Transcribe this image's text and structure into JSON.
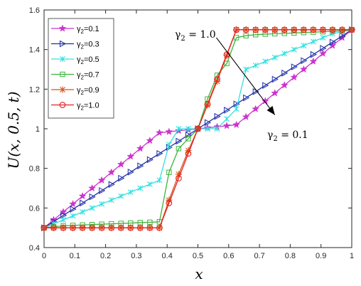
{
  "chart_data": {
    "type": "line",
    "title": "",
    "xlabel": "x",
    "ylabel": "U(x, 0.5, t)",
    "xlim": [
      0,
      1
    ],
    "ylim": [
      0.4,
      1.6
    ],
    "xticks": [
      0,
      0.1,
      0.2,
      0.3,
      0.4,
      0.5,
      0.6,
      0.7,
      0.8,
      0.9,
      1
    ],
    "yticks": [
      0.4,
      0.6,
      0.8,
      1,
      1.2,
      1.4,
      1.6
    ],
    "xtick_labels": [
      "0",
      "0.1",
      "0.2",
      "0.3",
      "0.4",
      "0.5",
      "0.6",
      "0.7",
      "0.8",
      "0.9",
      "1"
    ],
    "ytick_labels": [
      "0.4",
      "0.6",
      "0.8",
      "1",
      "1.2",
      "1.4",
      "1.6"
    ],
    "grid": false,
    "legend_position": "top-left",
    "x": [
      0,
      0.0312,
      0.0625,
      0.0938,
      0.125,
      0.1562,
      0.1875,
      0.2188,
      0.25,
      0.2812,
      0.3125,
      0.3438,
      0.375,
      0.4062,
      0.4375,
      0.4688,
      0.5,
      0.5312,
      0.5625,
      0.5938,
      0.625,
      0.6562,
      0.6875,
      0.7188,
      0.75,
      0.7812,
      0.8125,
      0.8438,
      0.875,
      0.9062,
      0.9375,
      0.9688,
      1
    ],
    "series": [
      {
        "name": "γ2=0.1",
        "label_main": "γ",
        "label_sub": "2",
        "label_rest": "=0.1",
        "color": "#cc33cc",
        "marker": "star",
        "values": [
          0.5,
          0.54,
          0.58,
          0.62,
          0.66,
          0.7,
          0.74,
          0.78,
          0.82,
          0.86,
          0.9,
          0.94,
          0.98,
          0.985,
          0.99,
          0.995,
          1,
          1.005,
          1.01,
          1.015,
          1.02,
          1.06,
          1.1,
          1.14,
          1.18,
          1.22,
          1.26,
          1.3,
          1.34,
          1.38,
          1.42,
          1.46,
          1.5
        ]
      },
      {
        "name": "γ2=0.3",
        "label_main": "γ",
        "label_sub": "2",
        "label_rest": "=0.3",
        "color": "#1f2fa8",
        "marker": "triangle-right",
        "values": [
          0.5,
          0.5312,
          0.5625,
          0.5938,
          0.625,
          0.6562,
          0.6875,
          0.7188,
          0.75,
          0.7812,
          0.8125,
          0.8438,
          0.875,
          0.9062,
          0.9375,
          0.9688,
          1,
          1.0312,
          1.0625,
          1.0938,
          1.125,
          1.1562,
          1.1875,
          1.2188,
          1.25,
          1.2812,
          1.3125,
          1.3438,
          1.375,
          1.4062,
          1.4375,
          1.4688,
          1.5
        ]
      },
      {
        "name": "γ2=0.5",
        "label_main": "γ",
        "label_sub": "2",
        "label_rest": "=0.5",
        "color": "#33e0e0",
        "marker": "x-star",
        "values": [
          0.5,
          0.52,
          0.54,
          0.56,
          0.58,
          0.6,
          0.62,
          0.64,
          0.66,
          0.68,
          0.7,
          0.72,
          0.74,
          0.92,
          1.0,
          1.0,
          1.0,
          1.0,
          1.0,
          1.05,
          1.1,
          1.3,
          1.32,
          1.34,
          1.36,
          1.38,
          1.4,
          1.42,
          1.44,
          1.46,
          1.48,
          1.49,
          1.5
        ]
      },
      {
        "name": "γ2=0.7",
        "label_main": "γ",
        "label_sub": "2",
        "label_rest": "=0.7",
        "color": "#3cb43c",
        "marker": "square",
        "values": [
          0.5,
          0.505,
          0.51,
          0.512,
          0.514,
          0.516,
          0.518,
          0.52,
          0.522,
          0.524,
          0.526,
          0.528,
          0.53,
          0.78,
          0.9,
          0.95,
          1.0,
          1.15,
          1.27,
          1.33,
          1.46,
          1.47,
          1.475,
          1.478,
          1.48,
          1.482,
          1.484,
          1.486,
          1.488,
          1.49,
          1.492,
          1.494,
          1.5
        ]
      },
      {
        "name": "γ2=0.9",
        "label_main": "γ",
        "label_sub": "2",
        "label_rest": "=0.9",
        "color": "#d95319",
        "marker": "asterisk",
        "values": [
          0.5,
          0.5,
          0.5,
          0.5,
          0.5,
          0.5,
          0.5,
          0.5,
          0.5,
          0.5,
          0.5,
          0.5,
          0.5,
          0.64,
          0.77,
          0.89,
          1.0,
          1.12,
          1.24,
          1.37,
          1.5,
          1.5,
          1.5,
          1.5,
          1.5,
          1.5,
          1.5,
          1.5,
          1.5,
          1.5,
          1.5,
          1.5,
          1.5
        ]
      },
      {
        "name": "γ2=1.0",
        "label_main": "γ",
        "label_sub": "2",
        "label_rest": "=1.0",
        "color": "#e32222",
        "marker": "circle",
        "values": [
          0.5,
          0.5,
          0.5,
          0.5,
          0.5,
          0.5,
          0.5,
          0.5,
          0.5,
          0.5,
          0.5,
          0.5,
          0.5,
          0.625,
          0.75,
          0.875,
          1.0,
          1.125,
          1.25,
          1.375,
          1.5,
          1.5,
          1.5,
          1.5,
          1.5,
          1.5,
          1.5,
          1.5,
          1.5,
          1.5,
          1.5,
          1.5,
          1.5
        ]
      }
    ],
    "annotations": [
      {
        "name": "annotation-gamma-1",
        "main": "γ",
        "sub": "2",
        "rest": " = 1.0",
        "arrow_from": [
          0.56,
          1.46
        ],
        "arrow_to": [
          0.75,
          1.07
        ]
      },
      {
        "name": "annotation-gamma-01",
        "main": "γ",
        "sub": "2",
        "rest": " = 0.1"
      }
    ]
  }
}
